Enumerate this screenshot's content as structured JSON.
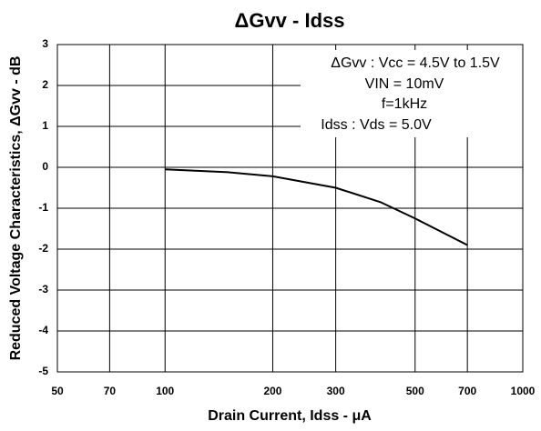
{
  "chart_data": {
    "type": "line",
    "title": "ΔGvv - Idss",
    "x_label": "Drain Current, Idss - μA",
    "y_label": "Reduced Voltage Characteristics, ΔGvv - dB",
    "annotations": [
      "ΔGvv : Vcc = 4.5V to 1.5V",
      "VIN = 10mV",
      "f=1kHz",
      "Idss : Vds = 5.0V"
    ],
    "x": [
      100,
      150,
      200,
      300,
      400,
      500,
      700
    ],
    "series": [
      {
        "name": "ΔGvv",
        "color": "#000000",
        "values": [
          -0.05,
          -0.12,
          -0.22,
          -0.5,
          -0.85,
          -1.25,
          -1.9
        ]
      }
    ],
    "xscale": "log",
    "xlim": [
      50,
      1000
    ],
    "xticks": [
      50,
      70,
      100,
      200,
      300,
      500,
      700,
      1000
    ],
    "ylim": [
      -5,
      3
    ],
    "yticks": [
      -5,
      -4,
      -3,
      -2,
      -1,
      0,
      1,
      2,
      3
    ],
    "grid": true
  }
}
